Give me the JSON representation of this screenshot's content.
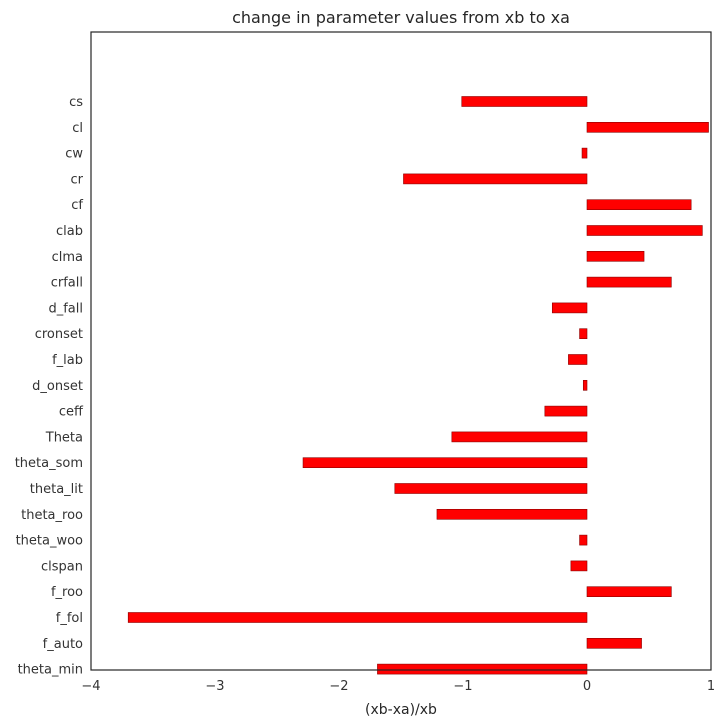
{
  "chart_data": {
    "type": "bar",
    "orientation": "horizontal",
    "title": "change in parameter values from xb to xa",
    "xlabel": "(xb-xa)/xb",
    "ylabel": "",
    "xlim": [
      -4,
      1
    ],
    "xticks": [
      -4,
      -3,
      -2,
      -1,
      0,
      1
    ],
    "xtick_labels": [
      "−4",
      "−3",
      "−2",
      "−1",
      "0",
      "1"
    ],
    "grid": false,
    "bar_color": "#ff0000",
    "categories": [
      "cs",
      "cl",
      "cw",
      "cr",
      "cf",
      "clab",
      "clma",
      "crfall",
      "d_fall",
      "cronset",
      "f_lab",
      "d_onset",
      "ceff",
      "Theta",
      "theta_som",
      "theta_lit",
      "theta_roo",
      "theta_woo",
      "clspan",
      "f_roo",
      "f_fol",
      "f_auto",
      "theta_min"
    ],
    "values": [
      -1.01,
      0.98,
      -0.04,
      -1.48,
      0.84,
      0.93,
      0.46,
      0.68,
      -0.28,
      -0.06,
      -0.15,
      -0.03,
      -0.34,
      -1.09,
      -2.29,
      -1.55,
      -1.21,
      -0.06,
      -0.13,
      0.68,
      -3.7,
      0.44,
      -1.69
    ]
  }
}
